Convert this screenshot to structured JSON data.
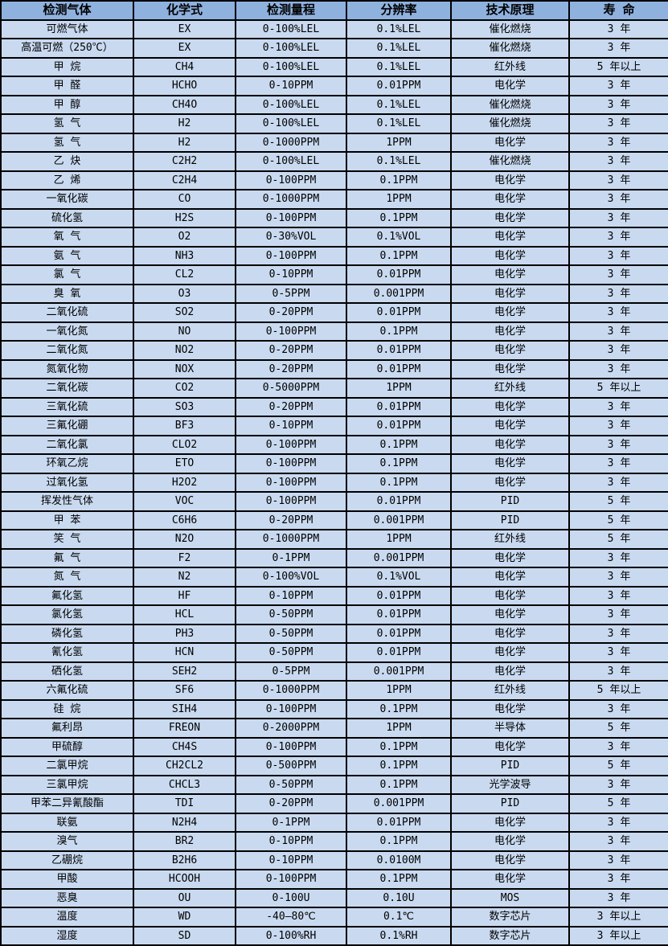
{
  "colors": {
    "header_bg": "#8fb1de",
    "row_bg": "#c9daf0",
    "border": "#000000",
    "text": "#000000"
  },
  "table": {
    "columns": [
      {
        "key": "gas",
        "label": "检测气体"
      },
      {
        "key": "formula",
        "label": "化学式"
      },
      {
        "key": "range",
        "label": "检测量程"
      },
      {
        "key": "resolution",
        "label": "分辨率"
      },
      {
        "key": "principle",
        "label": "技术原理"
      },
      {
        "key": "lifespan",
        "label": "寿 命"
      }
    ],
    "rows": [
      [
        "可燃气体",
        "EX",
        "0-100%LEL",
        "0.1%LEL",
        "催化燃烧",
        "3 年"
      ],
      [
        "高温可燃（250℃）",
        "EX",
        "0-100%LEL",
        "0.1%LEL",
        "催化燃烧",
        "3 年"
      ],
      [
        "甲 烷",
        "CH4",
        "0-100%LEL",
        "0.1%LEL",
        "红外线",
        "5 年以上"
      ],
      [
        "甲 醛",
        "HCHO",
        "0-10PPM",
        "0.01PPM",
        "电化学",
        "3 年"
      ],
      [
        "甲 醇",
        "CH4O",
        "0-100%LEL",
        "0.1%LEL",
        "催化燃烧",
        "3 年"
      ],
      [
        "氢 气",
        "H2",
        "0-100%LEL",
        "0.1%LEL",
        "催化燃烧",
        "3 年"
      ],
      [
        "氢 气",
        "H2",
        "0-1000PPM",
        "1PPM",
        "电化学",
        "3 年"
      ],
      [
        "乙 炔",
        "C2H2",
        "0-100%LEL",
        "0.1%LEL",
        "催化燃烧",
        "3 年"
      ],
      [
        "乙 烯",
        "C2H4",
        "0-100PPM",
        "0.1PPM",
        "电化学",
        "3 年"
      ],
      [
        "一氧化碳",
        "CO",
        "0-1000PPM",
        "1PPM",
        "电化学",
        "3 年"
      ],
      [
        "硫化氢",
        "H2S",
        "0-100PPM",
        "0.1PPM",
        "电化学",
        "3 年"
      ],
      [
        "氧 气",
        "O2",
        "0-30%VOL",
        "0.1%VOL",
        "电化学",
        "3 年"
      ],
      [
        "氨 气",
        "NH3",
        "0-100PPM",
        "0.1PPM",
        "电化学",
        "3 年"
      ],
      [
        "氯 气",
        "CL2",
        "0-10PPM",
        "0.01PPM",
        "电化学",
        "3 年"
      ],
      [
        "臭 氧",
        "O3",
        "0-5PPM",
        "0.001PPM",
        "电化学",
        "3 年"
      ],
      [
        "二氧化硫",
        "SO2",
        "0-20PPM",
        "0.01PPM",
        "电化学",
        "3 年"
      ],
      [
        "一氧化氮",
        "NO",
        "0-100PPM",
        "0.1PPM",
        "电化学",
        "3 年"
      ],
      [
        "二氧化氮",
        "NO2",
        "0-20PPM",
        "0.01PPM",
        "电化学",
        "3 年"
      ],
      [
        "氮氧化物",
        "NOX",
        "0-20PPM",
        "0.01PPM",
        "电化学",
        "3 年"
      ],
      [
        "二氧化碳",
        "CO2",
        "0-5000PPM",
        "1PPM",
        "红外线",
        "5 年以上"
      ],
      [
        "三氧化硫",
        "SO3",
        "0-20PPM",
        "0.01PPM",
        "电化学",
        "3 年"
      ],
      [
        "三氟化硼",
        "BF3",
        "0-10PPM",
        "0.01PPM",
        "电化学",
        "3 年"
      ],
      [
        "二氧化氯",
        "CLO2",
        "0-100PPM",
        "0.1PPM",
        "电化学",
        "3 年"
      ],
      [
        "环氧乙烷",
        "ETO",
        "0-100PPM",
        "0.1PPM",
        "电化学",
        "3 年"
      ],
      [
        "过氧化氢",
        "H2O2",
        "0-100PPM",
        "0.1PPM",
        "电化学",
        "3 年"
      ],
      [
        "挥发性气体",
        "VOC",
        "0-100PPM",
        "0.01PPM",
        "PID",
        "5 年"
      ],
      [
        "甲 苯",
        "C6H6",
        "0-20PPM",
        "0.001PPM",
        "PID",
        "5 年"
      ],
      [
        "笑 气",
        "N2O",
        "0-1000PPM",
        "1PPM",
        "红外线",
        "5 年"
      ],
      [
        "氟 气",
        "F2",
        "0-1PPM",
        "0.001PPM",
        "电化学",
        "3 年"
      ],
      [
        "氮 气",
        "N2",
        "0-100%VOL",
        "0.1%VOL",
        "电化学",
        "3 年"
      ],
      [
        "氟化氢",
        "HF",
        "0-10PPM",
        "0.01PPM",
        "电化学",
        "3 年"
      ],
      [
        "氯化氢",
        "HCL",
        "0-50PPM",
        "0.01PPM",
        "电化学",
        "3 年"
      ],
      [
        "磷化氢",
        "PH3",
        "0-50PPM",
        "0.01PPM",
        "电化学",
        "3 年"
      ],
      [
        "氰化氢",
        "HCN",
        "0-50PPM",
        "0.01PPM",
        "电化学",
        "3 年"
      ],
      [
        "硒化氢",
        "SEH2",
        "0-5PPM",
        "0.001PPM",
        "电化学",
        "3 年"
      ],
      [
        "六氟化硫",
        "SF6",
        "0-1000PPM",
        "1PPM",
        "红外线",
        "5 年以上"
      ],
      [
        "硅 烷",
        "SIH4",
        "0-100PPM",
        "0.1PPM",
        "电化学",
        "3 年"
      ],
      [
        "氟利昂",
        "FREON",
        "0-2000PPM",
        "1PPM",
        "半导体",
        "5 年"
      ],
      [
        "甲硫醇",
        "CH4S",
        "0-100PPM",
        "0.1PPM",
        "电化学",
        "3 年"
      ],
      [
        "二氯甲烷",
        "CH2CL2",
        "0-500PPM",
        "0.1PPM",
        "PID",
        "5 年"
      ],
      [
        "三氯甲烷",
        "CHCL3",
        "0-50PPM",
        "0.1PPM",
        "光学波导",
        "3 年"
      ],
      [
        "甲苯二异氰酸酯",
        "TDI",
        "0-20PPM",
        "0.001PPM",
        "PID",
        "5 年"
      ],
      [
        "联氨",
        "N2H4",
        "0-1PPM",
        "0.01PPM",
        "电化学",
        "3 年"
      ],
      [
        "溴气",
        "BR2",
        "0-10PPM",
        "0.1PPM",
        "电化学",
        "3 年"
      ],
      [
        "乙硼烷",
        "B2H6",
        "0-10PPM",
        "0.0100M",
        "电化学",
        "3 年"
      ],
      [
        "甲酸",
        "HCOOH",
        "0-100PPM",
        "0.1PPM",
        "电化学",
        "3 年"
      ],
      [
        "恶臭",
        "OU",
        "0-100U",
        "0.10U",
        "MOS",
        "3 年"
      ],
      [
        "温度",
        "WD",
        "-40—80℃",
        "0.1℃",
        "数字芯片",
        "3 年以上"
      ],
      [
        "湿度",
        "SD",
        "0-100%RH",
        "0.1%RH",
        "数字芯片",
        "3 年以上"
      ]
    ]
  }
}
